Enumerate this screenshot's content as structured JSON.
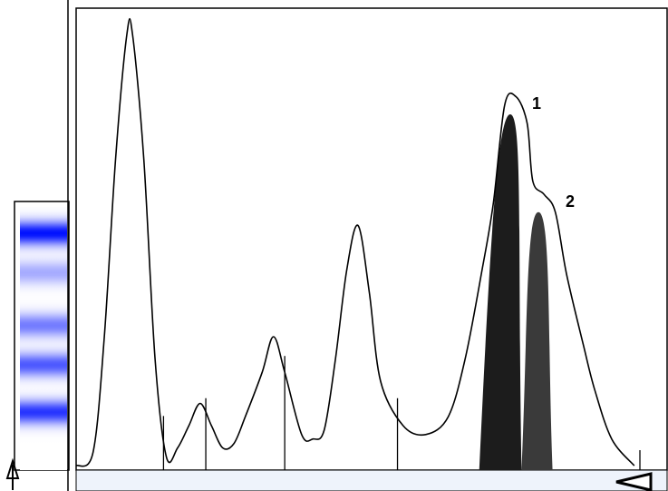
{
  "chart_data": {
    "type": "line",
    "title": "",
    "xlabel": "",
    "ylabel": "",
    "xlim": [
      0,
      100
    ],
    "ylim": [
      0,
      100
    ],
    "grid": false,
    "series": [
      {
        "points": [
          [
            0,
            1
          ],
          [
            3,
            4
          ],
          [
            5,
            30
          ],
          [
            7,
            70
          ],
          [
            9,
            98
          ],
          [
            10,
            98
          ],
          [
            12,
            70
          ],
          [
            14,
            25
          ],
          [
            16,
            3
          ],
          [
            18,
            5
          ],
          [
            20,
            10
          ],
          [
            22,
            15
          ],
          [
            24,
            10
          ],
          [
            26,
            5
          ],
          [
            28,
            6
          ],
          [
            30,
            12
          ],
          [
            33,
            22
          ],
          [
            35,
            30
          ],
          [
            37,
            22
          ],
          [
            40,
            8
          ],
          [
            42,
            7
          ],
          [
            44,
            9
          ],
          [
            46,
            25
          ],
          [
            48,
            45
          ],
          [
            50,
            55
          ],
          [
            52,
            40
          ],
          [
            54,
            20
          ],
          [
            58,
            10
          ],
          [
            62,
            8
          ],
          [
            66,
            12
          ],
          [
            69,
            25
          ],
          [
            72,
            45
          ],
          [
            74,
            60
          ],
          [
            76,
            82
          ],
          [
            78,
            84
          ],
          [
            80,
            78
          ],
          [
            81,
            65
          ],
          [
            83,
            62
          ],
          [
            85,
            58
          ],
          [
            87,
            44
          ],
          [
            90,
            28
          ],
          [
            92,
            18
          ],
          [
            95,
            7
          ],
          [
            99,
            1
          ]
        ],
        "color": "#000000"
      }
    ],
    "segment_markers_x": [
      15.5,
      23,
      37,
      57,
      100
    ],
    "highlighted_peaks": [
      {
        "label": "1",
        "center": 77,
        "base": [
          71.5,
          79
        ],
        "height": 80,
        "color": "#1c1c1c"
      },
      {
        "label": "2",
        "center": 82,
        "base": [
          79,
          84.5
        ],
        "height": 58,
        "color": "#3a3a3a"
      }
    ],
    "gel_lane": {
      "bands": [
        {
          "position": 0.1,
          "intensity": 1.0
        },
        {
          "position": 0.25,
          "intensity": 0.35
        },
        {
          "position": 0.45,
          "intensity": 0.55
        },
        {
          "position": 0.6,
          "intensity": 0.7
        },
        {
          "position": 0.78,
          "intensity": 0.85
        }
      ],
      "band_color": "#0010ff"
    }
  }
}
